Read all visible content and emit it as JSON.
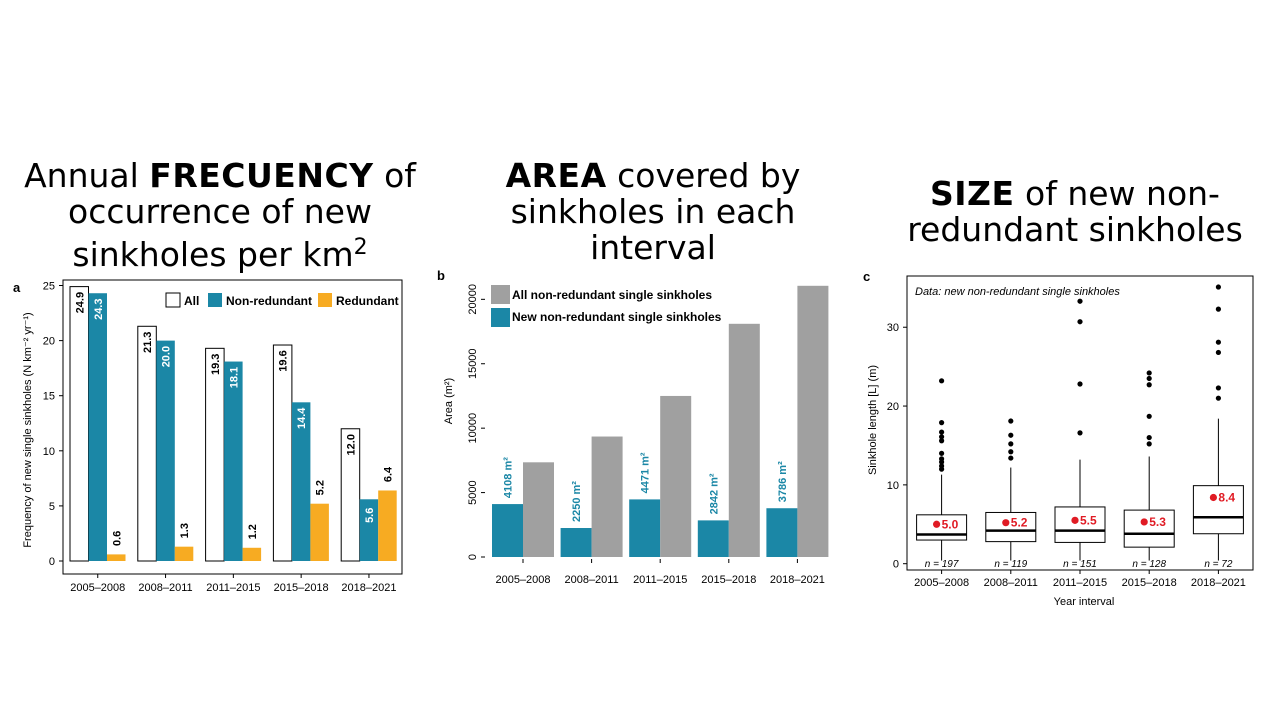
{
  "headings": [
    {
      "pre": "Annual ",
      "bold": "FRECUENCY",
      "post": " of occurrence of new sinkholes per km",
      "sup": "2"
    },
    {
      "pre": "",
      "bold": "AREA",
      "post": " covered by sinkholes in each interval",
      "sup": ""
    },
    {
      "pre": "",
      "bold": "SIZE",
      "post": " of new non-redundant sinkholes",
      "sup": ""
    }
  ],
  "colors": {
    "all": "#ffffff",
    "nonredundant": "#1b87a6",
    "redundant": "#f7ab22",
    "gray": "#a0a0a0",
    "mean": "#e01b24"
  },
  "chart_data": [
    {
      "panel": "a",
      "type": "bar",
      "categories": [
        "2005–2008",
        "2008–2011",
        "2011–2015",
        "2015–2018",
        "2018–2021"
      ],
      "series": [
        {
          "name": "All",
          "values": [
            24.9,
            21.3,
            19.3,
            19.6,
            12.0
          ],
          "labels": [
            "24.9",
            "21.3",
            "19.3",
            "19.6",
            "12.0"
          ]
        },
        {
          "name": "Non-redundant",
          "values": [
            24.3,
            20.0,
            18.1,
            14.4,
            5.6
          ],
          "labels": [
            "24.3",
            "20.0",
            "18.1",
            "14.4",
            "5.6"
          ]
        },
        {
          "name": "Redundant",
          "values": [
            0.6,
            1.3,
            1.2,
            5.2,
            6.4
          ],
          "labels": [
            "0.6",
            "1.3",
            "1.2",
            "5.2",
            "6.4"
          ]
        }
      ],
      "ylabel": "Frequency of new single sinkholes (N km⁻² yr⁻¹)",
      "yticks": [
        "0",
        "5",
        "10",
        "15",
        "20",
        "25"
      ],
      "ylim": [
        0,
        25.5
      ],
      "legend": "top-right"
    },
    {
      "panel": "b",
      "type": "bar",
      "categories": [
        "2005–2008",
        "2008–2011",
        "2011–2015",
        "2015–2018",
        "2018–2021"
      ],
      "series": [
        {
          "name": "New non-redundant single sinkholes",
          "values": [
            4108,
            2250,
            4471,
            2842,
            3786
          ],
          "labels": [
            "4108 m²",
            "2250 m²",
            "4471 m²",
            "2842 m²",
            "3786 m²"
          ]
        },
        {
          "name": "All non-redundant single sinkholes",
          "values": [
            7350,
            9350,
            12500,
            18100,
            21050
          ]
        }
      ],
      "ylabel": "Area (m²)",
      "yticks": [
        "0",
        "5000",
        "10000",
        "15000",
        "20000"
      ],
      "ylim": [
        0,
        21500
      ],
      "legend": "top-left"
    },
    {
      "panel": "c",
      "type": "box",
      "annotation": "Data: new non-redundant single sinkholes",
      "categories": [
        "2005–2008",
        "2008–2011",
        "2011–2015",
        "2015–2018",
        "2018–2021"
      ],
      "boxes": [
        {
          "q1": 3.0,
          "median": 3.7,
          "q3": 6.2,
          "whisker_low": 0.4,
          "whisker_high": 11.3,
          "mean": 5.0,
          "mean_label": "5.0",
          "n": "n = 197",
          "outliers": [
            12.0,
            12.4,
            12.9,
            13.3,
            14.0,
            15.6,
            16.1,
            16.7,
            17.9,
            23.2
          ]
        },
        {
          "q1": 2.8,
          "median": 4.2,
          "q3": 6.5,
          "whisker_low": 0.4,
          "whisker_high": 12.2,
          "mean": 5.2,
          "mean_label": "5.2",
          "n": "n = 119",
          "outliers": [
            13.4,
            14.2,
            15.2,
            16.3,
            18.1
          ]
        },
        {
          "q1": 2.7,
          "median": 4.2,
          "q3": 7.2,
          "whisker_low": 0.4,
          "whisker_high": 13.2,
          "mean": 5.5,
          "mean_label": "5.5",
          "n": "n = 151",
          "outliers": [
            16.6,
            22.8,
            30.7,
            33.3
          ]
        },
        {
          "q1": 2.1,
          "median": 3.8,
          "q3": 6.8,
          "whisker_low": 0.4,
          "whisker_high": 13.6,
          "mean": 5.3,
          "mean_label": "5.3",
          "n": "n = 128",
          "outliers": [
            15.2,
            16.0,
            18.7,
            22.7,
            23.5,
            24.2
          ]
        },
        {
          "q1": 3.8,
          "median": 5.9,
          "q3": 9.9,
          "whisker_low": 0.4,
          "whisker_high": 18.4,
          "mean": 8.4,
          "mean_label": "8.4",
          "n": "n = 72",
          "outliers": [
            21.0,
            22.3,
            26.8,
            28.1,
            32.3,
            35.1
          ]
        }
      ],
      "xlabel": "Year interval",
      "ylabel": "Sinkhole length [L] (m)",
      "yticks": [
        "0",
        "10",
        "20",
        "30"
      ],
      "ylim": [
        -0.8,
        36.5
      ]
    }
  ]
}
